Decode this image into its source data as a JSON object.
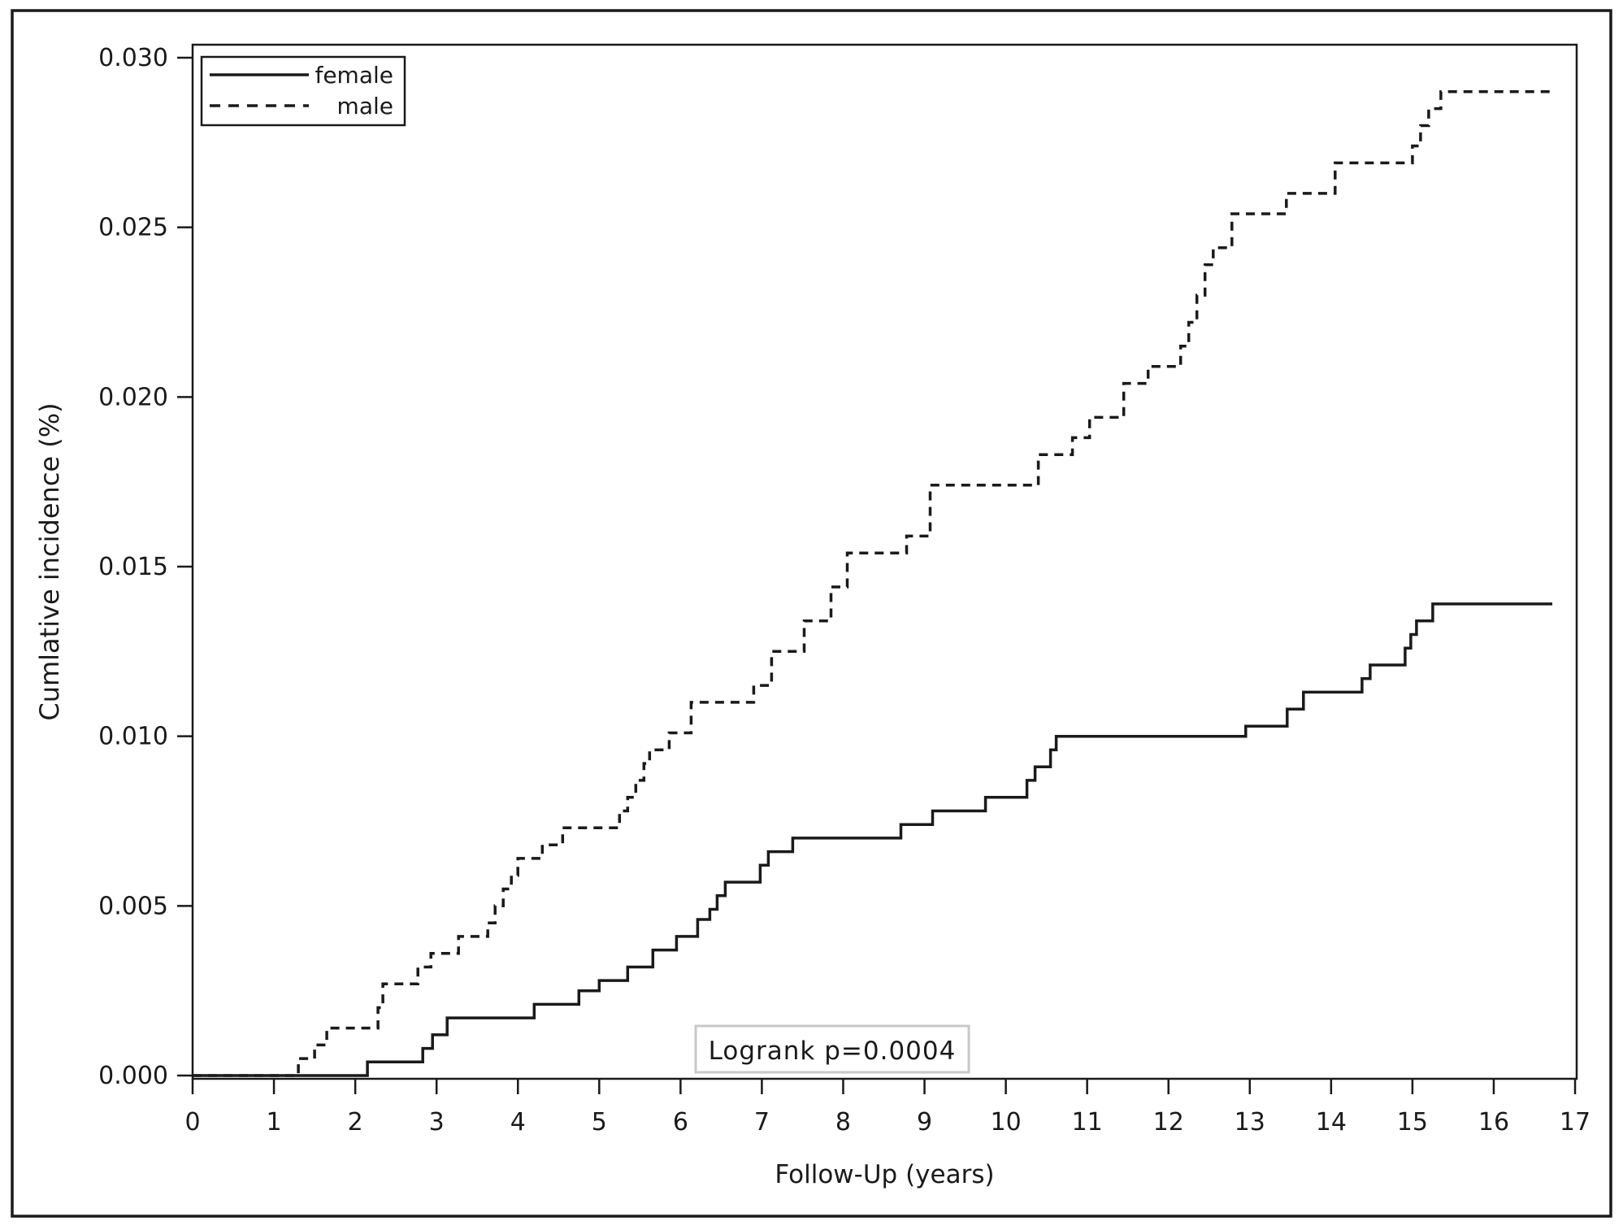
{
  "figure": {
    "background": "#ffffff",
    "line_color": "#1a1a1a",
    "frame_color": "#1a1a1a",
    "annotation_border_color": "#c8c8c8"
  },
  "chart_data": {
    "type": "line",
    "subtype": "step",
    "title": "",
    "xlabel": "Follow-Up (years)",
    "ylabel": "Cumlative incidence (%)",
    "xlim": [
      0,
      17
    ],
    "ylim": [
      0.0,
      0.03
    ],
    "grid": false,
    "x_ticks": [
      0,
      1,
      2,
      3,
      4,
      5,
      6,
      7,
      8,
      9,
      10,
      11,
      12,
      13,
      14,
      15,
      16,
      17
    ],
    "y_ticks": [
      0.0,
      0.005,
      0.01,
      0.015,
      0.02,
      0.025,
      0.03
    ],
    "y_tick_labels": [
      "0.000",
      "0.005",
      "0.010",
      "0.015",
      "0.020",
      "0.025",
      "0.030"
    ],
    "legend_position": "top-left",
    "legend": [
      {
        "label": "female",
        "style": "solid"
      },
      {
        "label": "male",
        "style": "dashed"
      }
    ],
    "annotation": "Logrank p=0.0004",
    "series": [
      {
        "name": "male",
        "line": "dashed",
        "end_x": 16.7,
        "steps": [
          [
            0,
            0
          ],
          [
            1.3,
            0.0005
          ],
          [
            1.5,
            0.0009
          ],
          [
            1.65,
            0.0014
          ],
          [
            2.28,
            0.002
          ],
          [
            2.34,
            0.0027
          ],
          [
            2.77,
            0.0032
          ],
          [
            2.93,
            0.0036
          ],
          [
            3.27,
            0.0041
          ],
          [
            3.63,
            0.0045
          ],
          [
            3.72,
            0.005
          ],
          [
            3.82,
            0.0055
          ],
          [
            3.92,
            0.0059
          ],
          [
            4.0,
            0.0064
          ],
          [
            4.3,
            0.0068
          ],
          [
            4.55,
            0.0073
          ],
          [
            5.25,
            0.0078
          ],
          [
            5.35,
            0.0082
          ],
          [
            5.45,
            0.0087
          ],
          [
            5.55,
            0.0092
          ],
          [
            5.62,
            0.0096
          ],
          [
            5.86,
            0.0101
          ],
          [
            6.13,
            0.011
          ],
          [
            6.9,
            0.0115
          ],
          [
            7.12,
            0.0125
          ],
          [
            7.52,
            0.0134
          ],
          [
            7.85,
            0.0144
          ],
          [
            8.05,
            0.0154
          ],
          [
            8.78,
            0.0159
          ],
          [
            9.07,
            0.0174
          ],
          [
            10.4,
            0.0183
          ],
          [
            10.82,
            0.0188
          ],
          [
            11.03,
            0.0194
          ],
          [
            11.45,
            0.0204
          ],
          [
            11.75,
            0.0209
          ],
          [
            12.15,
            0.0215
          ],
          [
            12.25,
            0.0222
          ],
          [
            12.35,
            0.023
          ],
          [
            12.45,
            0.0239
          ],
          [
            12.55,
            0.0244
          ],
          [
            12.78,
            0.0254
          ],
          [
            13.45,
            0.026
          ],
          [
            14.05,
            0.0269
          ],
          [
            15.0,
            0.0274
          ],
          [
            15.1,
            0.028
          ],
          [
            15.2,
            0.0285
          ],
          [
            15.35,
            0.029
          ]
        ]
      },
      {
        "name": "female",
        "line": "solid",
        "end_x": 16.72,
        "steps": [
          [
            0,
            0
          ],
          [
            2.15,
            0.0004
          ],
          [
            2.83,
            0.0008
          ],
          [
            2.95,
            0.0012
          ],
          [
            3.13,
            0.0017
          ],
          [
            4.2,
            0.0021
          ],
          [
            4.75,
            0.0025
          ],
          [
            5.0,
            0.0028
          ],
          [
            5.35,
            0.0032
          ],
          [
            5.66,
            0.0037
          ],
          [
            5.95,
            0.0041
          ],
          [
            6.21,
            0.0046
          ],
          [
            6.36,
            0.0049
          ],
          [
            6.45,
            0.0053
          ],
          [
            6.55,
            0.0057
          ],
          [
            6.98,
            0.0062
          ],
          [
            7.08,
            0.0066
          ],
          [
            7.38,
            0.007
          ],
          [
            8.71,
            0.0074
          ],
          [
            9.1,
            0.0078
          ],
          [
            9.75,
            0.0082
          ],
          [
            10.26,
            0.0087
          ],
          [
            10.36,
            0.0091
          ],
          [
            10.55,
            0.0096
          ],
          [
            10.62,
            0.01
          ],
          [
            12.95,
            0.0103
          ],
          [
            13.46,
            0.0108
          ],
          [
            13.66,
            0.0113
          ],
          [
            14.38,
            0.0117
          ],
          [
            14.48,
            0.0121
          ],
          [
            14.91,
            0.0126
          ],
          [
            14.98,
            0.013
          ],
          [
            15.05,
            0.0134
          ],
          [
            15.25,
            0.0139
          ]
        ]
      }
    ]
  }
}
